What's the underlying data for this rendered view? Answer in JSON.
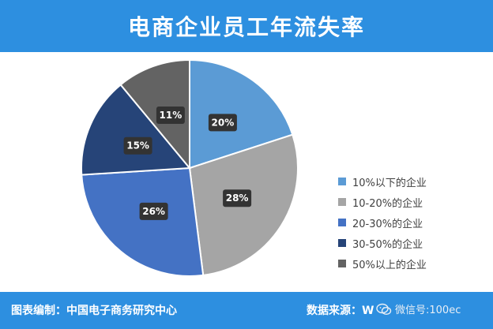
{
  "header": {
    "title": "电商企业员工年流失率"
  },
  "chart_data": {
    "type": "pie",
    "title": "电商企业员工年流失率",
    "categories": [
      "10%以下的企业",
      "10-20%的企业",
      "20-30%的企业",
      "30-50%的企业",
      "50%以上的企业"
    ],
    "values": [
      20,
      28,
      26,
      15,
      11
    ],
    "value_labels": [
      "20%",
      "28%",
      "26%",
      "15%",
      "11%"
    ],
    "colors": [
      "#5b9bd5",
      "#a5a5a5",
      "#4472c4",
      "#264478",
      "#636363"
    ],
    "start_angle": "12 o'clock",
    "direction": "clockwise",
    "legend_position": "right"
  },
  "footer": {
    "editor": "图表编制：中国电子商务研究中心",
    "source_label": "数据来源：W",
    "watermark": "微信号:100ec",
    "watermark_icon": "wechat-icon"
  }
}
